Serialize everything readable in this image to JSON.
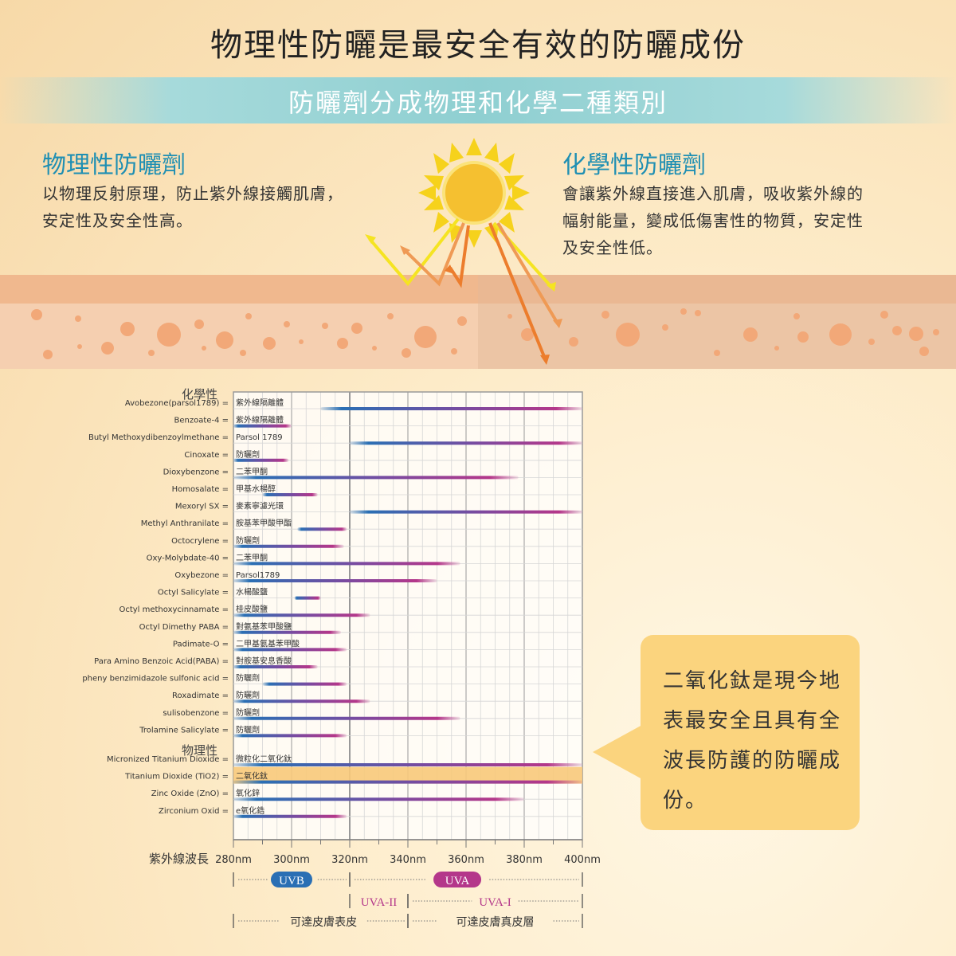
{
  "header": {
    "title": "物理性防曬是最安全有效的防曬成份",
    "banner": "防曬劑分成物理和化學二種類別"
  },
  "physical": {
    "title": "物理性防曬劑",
    "desc1": "以物理反射原理，防止紫外線接觸肌膚，",
    "desc2": "安定性及安全性高。"
  },
  "chemical": {
    "title": "化學性防曬劑",
    "desc1": "會讓紫外線直接進入肌膚，吸收紫外線的",
    "desc2": "幅射能量，變成低傷害性的物質，安定性",
    "desc3": "及安全性低。"
  },
  "callout": {
    "line1": "二氧化鈦是現今地",
    "line2": "表最安全且具有全",
    "line3": "波長防護的防曬成",
    "line4": "份。"
  },
  "colors": {
    "title_blue": "#1f8fb3",
    "bar_blue": "#2a6fb4",
    "bar_magenta": "#b4378a",
    "highlight": "#f8c97a",
    "callout": "#fbd47e",
    "banner": "#8fcfd1"
  },
  "chart_data": {
    "type": "bar",
    "orientation": "horizontal-range",
    "x_axis_label": "紫外線波長",
    "xlim": [
      280,
      400
    ],
    "x_ticks": [
      "280nm",
      "300nm",
      "320nm",
      "340nm",
      "360nm",
      "380nm",
      "400nm"
    ],
    "grid": true,
    "groups": [
      {
        "label": "化學性",
        "rows": [
          {
            "name": "Avobezone(parsol1789) =",
            "zh": "紫外線隔離體",
            "start": 310,
            "end": 400
          },
          {
            "name": "Benzoate-4 =",
            "zh": "紫外線隔離體",
            "start": 280,
            "end": 300
          },
          {
            "name": "Butyl Methoxydibenzoylmethane =",
            "zh": "Parsol 1789",
            "start": 320,
            "end": 400
          },
          {
            "name": "Cinoxate =",
            "zh": "防曬劑",
            "start": 280,
            "end": 299
          },
          {
            "name": "Dioxybenzone =",
            "zh": "二苯甲酮",
            "start": 280,
            "end": 378
          },
          {
            "name": "Homosalate =",
            "zh": "甲基水楊醇",
            "start": 290,
            "end": 309
          },
          {
            "name": "Mexoryl SX =",
            "zh": "麥素寧濾光環",
            "start": 320,
            "end": 400
          },
          {
            "name": "Methyl Anthranilate =",
            "zh": "胺基苯甲酸甲酯",
            "start": 302,
            "end": 319
          },
          {
            "name": "Octocrylene =",
            "zh": "防曬劑",
            "start": 280,
            "end": 318
          },
          {
            "name": "Oxy-Molybdate-40 =",
            "zh": "二苯甲酮",
            "start": 280,
            "end": 358
          },
          {
            "name": "Oxybezone =",
            "zh": "Parsol1789",
            "start": 280,
            "end": 350
          },
          {
            "name": "Octyl Salicylate =",
            "zh": "水楊酸鹽",
            "start": 301,
            "end": 310
          },
          {
            "name": "Octyl methoxycinnamate =",
            "zh": "桂皮酸鹽",
            "start": 280,
            "end": 327
          },
          {
            "name": "Octyl Dimethy PABA =",
            "zh": "對氨基苯甲酸鹽",
            "start": 280,
            "end": 317
          },
          {
            "name": "Padimate-O =",
            "zh": "二甲基氨基苯甲酸",
            "start": 280,
            "end": 319
          },
          {
            "name": "Para Amino Benzoic Acid(PABA) =",
            "zh": "對胺基安息香酸",
            "start": 280,
            "end": 309
          },
          {
            "name": "pheny benzimidazole sulfonic acid =",
            "zh": "防曬劑",
            "start": 290,
            "end": 319
          },
          {
            "name": "Roxadimate =",
            "zh": "防曬劑",
            "start": 280,
            "end": 327
          },
          {
            "name": "sulisobenzone =",
            "zh": "防曬劑",
            "start": 280,
            "end": 358
          },
          {
            "name": "Trolamine Salicylate =",
            "zh": "防曬劑",
            "start": 280,
            "end": 319
          }
        ]
      },
      {
        "label": "物理性",
        "rows": [
          {
            "name": "Micronized Titanium Dioxide =",
            "zh": "微粒化二氧化鈦",
            "start": 280,
            "end": 400
          },
          {
            "name": "Titanium Dioxide (TiO2) =",
            "zh": "二氧化鈦",
            "start": 280,
            "end": 400,
            "highlight": true
          },
          {
            "name": "Zinc Oxide (ZnO) =",
            "zh": "氧化鋅",
            "start": 280,
            "end": 380
          },
          {
            "name": "Zirconium Oxid =",
            "zh": "e氧化鋯",
            "start": 280,
            "end": 319
          }
        ]
      }
    ],
    "bands": {
      "uvb": "UVB",
      "uva": "UVA",
      "uva2": "UVA-II",
      "uva1": "UVA-I",
      "epidermis": "可達皮膚表皮",
      "dermis": "可達皮膚真皮層"
    }
  }
}
